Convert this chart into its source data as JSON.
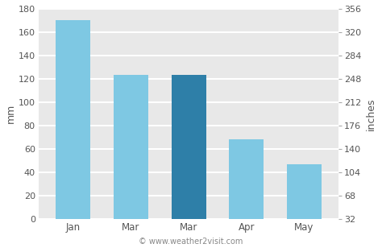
{
  "categories": [
    "Jan",
    "Mar",
    "Mar",
    "Apr",
    "May"
  ],
  "values": [
    170,
    123,
    123,
    68,
    47
  ],
  "bar_colors": [
    "#7ec8e3",
    "#7ec8e3",
    "#2e7fa8",
    "#7ec8e3",
    "#7ec8e3"
  ],
  "bar_edge_colors": [
    "#7ec8e3",
    "#7ec8e3",
    "#2e7fa8",
    "#7ec8e3",
    "#7ec8e3"
  ],
  "ylabel_left": "mm",
  "ylabel_right": "inches",
  "ylim_left": [
    0,
    180
  ],
  "yticks_left": [
    0,
    20,
    40,
    60,
    80,
    100,
    120,
    140,
    160,
    180
  ],
  "yticks_right": [
    32,
    68,
    104,
    140,
    176,
    212,
    248,
    284,
    320,
    356
  ],
  "background_color": "#ffffff",
  "plot_bg_color": "#e8e8e8",
  "grid_color": "#ffffff",
  "watermark": "© www.weather2visit.com",
  "bar_width": 0.6
}
